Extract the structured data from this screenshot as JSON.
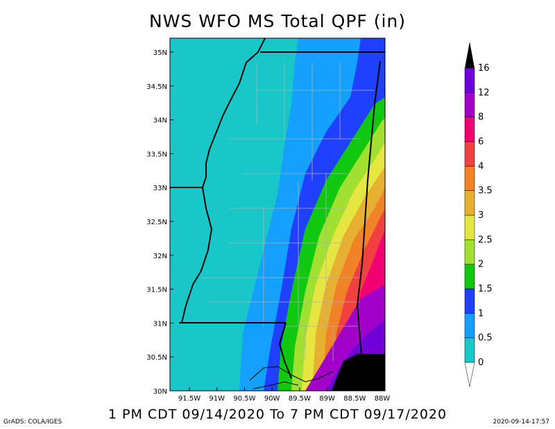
{
  "title": "NWS WFO MS Total QPF (in)",
  "subtitle": "1 PM CDT 09/14/2020 To 7 PM CDT 09/17/2020",
  "credit": "GrADS: COLA/IGES",
  "timestamp": "2020-09-14-17:57",
  "map": {
    "lat_labels": [
      "35N",
      "34.5N",
      "34N",
      "33.5N",
      "33N",
      "32.5N",
      "32N",
      "31.5N",
      "31N",
      "30.5N",
      "30N"
    ],
    "lon_labels": [
      "91.5W",
      "91W",
      "90.5W",
      "90W",
      "89.5W",
      "89W",
      "88.5W",
      "88W"
    ],
    "lat_range": [
      30,
      35
    ],
    "lon_range": [
      -91.7,
      -88.0
    ],
    "region": "Mississippi and surrounding area",
    "gradient_direction": "increasing toward southeast"
  },
  "legend": {
    "labels": [
      "0",
      "0.5",
      "1",
      "1.5",
      "2",
      "2.5",
      "3",
      "3.5",
      "4",
      "6",
      "8",
      "12",
      "16"
    ],
    "colors": [
      "#18c8c8",
      "#14a0ff",
      "#2040ff",
      "#10c810",
      "#a0e030",
      "#e6e640",
      "#e6b030",
      "#f08228",
      "#f04040",
      "#f00070",
      "#a000c8",
      "#7000d8"
    ],
    "over_color": "#000000",
    "under_color": "#ffffff"
  }
}
